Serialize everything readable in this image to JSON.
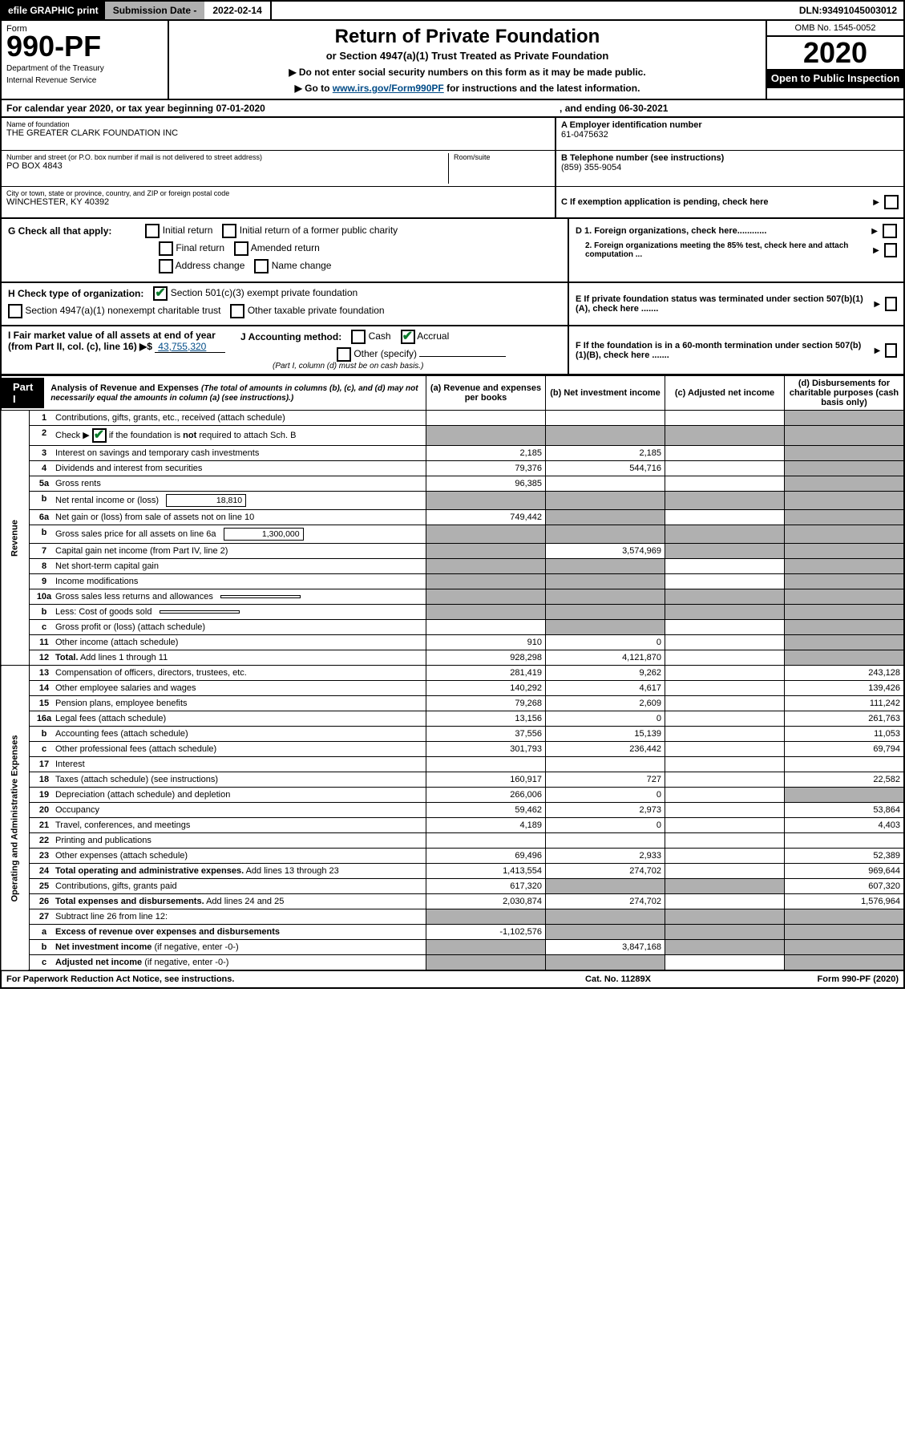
{
  "topbar": {
    "efile": "efile GRAPHIC print",
    "submission_label": "Submission Date - ",
    "submission_date": "2022-02-14",
    "dln_label": "DLN: ",
    "dln": "93491045003012"
  },
  "form": {
    "form_word": "Form",
    "number": "990-PF",
    "dept1": "Department of the Treasury",
    "dept2": "Internal Revenue Service",
    "title": "Return of Private Foundation",
    "subtitle": "or Section 4947(a)(1) Trust Treated as Private Foundation",
    "arrow1_pre": "▶ Do not enter social security numbers on this form as it may be made public.",
    "arrow2_pre": "▶ Go to ",
    "arrow2_link": "www.irs.gov/Form990PF",
    "arrow2_post": " for instructions and the latest information.",
    "omb": "OMB No. 1545-0052",
    "year": "2020",
    "open": "Open to Public Inspection"
  },
  "calendar": {
    "text_pre": "For calendar year 2020, or tax year beginning ",
    "begin": "07-01-2020",
    "text_mid": ", and ending ",
    "end": "06-30-2021"
  },
  "hb": {
    "name_label": "Name of foundation",
    "name": "THE GREATER CLARK FOUNDATION INC",
    "addr_label": "Number and street (or P.O. box number if mail is not delivered to street address)",
    "addr": "PO BOX 4843",
    "room_label": "Room/suite",
    "room": "",
    "city_label": "City or town, state or province, country, and ZIP or foreign postal code",
    "city": "WINCHESTER, KY  40392",
    "ein_label": "A Employer identification number",
    "ein": "61-0475632",
    "phone_label": "B Telephone number (see instructions)",
    "phone": "(859) 355-9054",
    "c_label": "C If exemption application is pending, check here"
  },
  "G": {
    "label": "G Check all that apply:",
    "opts": [
      "Initial return",
      "Initial return of a former public charity",
      "Final return",
      "Amended return",
      "Address change",
      "Name change"
    ],
    "D1": "D 1. Foreign organizations, check here............",
    "D2": "2. Foreign organizations meeting the 85% test, check here and attach computation ...",
    "E": "E  If private foundation status was terminated under section 507(b)(1)(A), check here .......",
    "F": "F  If the foundation is in a 60-month termination under section 507(b)(1)(B), check here ......."
  },
  "H": {
    "label": "H Check type of organization:",
    "opt1": "Section 501(c)(3) exempt private foundation",
    "opt2": "Section 4947(a)(1) nonexempt charitable trust",
    "opt3": "Other taxable private foundation"
  },
  "I": {
    "label": "I Fair market value of all assets at end of year (from Part II, col. (c), line 16) ▶$",
    "value": "43,755,320"
  },
  "J": {
    "label": "J Accounting method:",
    "opt_cash": "Cash",
    "opt_accrual": "Accrual",
    "opt_other": "Other (specify)",
    "note": "(Part I, column (d) must be on cash basis.)"
  },
  "part1": {
    "label": "Part I",
    "title": "Analysis of Revenue and Expenses",
    "sub": " (The total of amounts in columns (b), (c), and (d) may not necessarily equal the amounts in column (a) (see instructions).)",
    "cols": {
      "a": "(a)  Revenue and expenses per books",
      "b": "(b)  Net investment income",
      "c": "(c)  Adjusted net income",
      "d": "(d)  Disbursements for charitable purposes (cash basis only)"
    }
  },
  "sections": {
    "revenue": "Revenue",
    "opex": "Operating and Administrative Expenses"
  },
  "rows": [
    {
      "n": "1",
      "t": "Contributions, gifts, grants, etc., received (attach schedule)",
      "a": "",
      "b": "",
      "c": "",
      "d": "",
      "d_grey": true
    },
    {
      "n": "2",
      "t": "Check ▶ ☑ if the foundation is <b>not</b> required to attach Sch. B",
      "a": "",
      "b": "",
      "c": "",
      "d": "",
      "a_grey": true,
      "b_grey": true,
      "c_grey": true,
      "d_grey": true,
      "has_check": true
    },
    {
      "n": "3",
      "t": "Interest on savings and temporary cash investments",
      "a": "2,185",
      "b": "2,185",
      "c": "",
      "d": "",
      "d_grey": true
    },
    {
      "n": "4",
      "t": "Dividends and interest from securities",
      "a": "79,376",
      "b": "544,716",
      "c": "",
      "d": "",
      "d_grey": true
    },
    {
      "n": "5a",
      "t": "Gross rents",
      "a": "96,385",
      "b": "",
      "c": "",
      "d": "",
      "d_grey": true
    },
    {
      "n": "b",
      "t": "Net rental income or (loss)",
      "mini": "18,810",
      "a": "",
      "b": "",
      "c": "",
      "d": "",
      "a_grey": true,
      "b_grey": true,
      "c_grey": true,
      "d_grey": true
    },
    {
      "n": "6a",
      "t": "Net gain or (loss) from sale of assets not on line 10",
      "a": "749,442",
      "b": "",
      "c": "",
      "d": "",
      "b_grey": true,
      "d_grey": true
    },
    {
      "n": "b",
      "t": "Gross sales price for all assets on line 6a",
      "mini": "1,300,000",
      "a": "",
      "b": "",
      "c": "",
      "d": "",
      "a_grey": true,
      "b_grey": true,
      "c_grey": true,
      "d_grey": true
    },
    {
      "n": "7",
      "t": "Capital gain net income (from Part IV, line 2)",
      "a": "",
      "b": "3,574,969",
      "c": "",
      "d": "",
      "a_grey": true,
      "c_grey": true,
      "d_grey": true
    },
    {
      "n": "8",
      "t": "Net short-term capital gain",
      "a": "",
      "b": "",
      "c": "",
      "d": "",
      "a_grey": true,
      "b_grey": true,
      "d_grey": true
    },
    {
      "n": "9",
      "t": "Income modifications",
      "a": "",
      "b": "",
      "c": "",
      "d": "",
      "a_grey": true,
      "b_grey": true,
      "d_grey": true
    },
    {
      "n": "10a",
      "t": "Gross sales less returns and allowances",
      "mini": "",
      "a": "",
      "b": "",
      "c": "",
      "d": "",
      "a_grey": true,
      "b_grey": true,
      "c_grey": true,
      "d_grey": true
    },
    {
      "n": "b",
      "t": "Less: Cost of goods sold",
      "mini": "",
      "a": "",
      "b": "",
      "c": "",
      "d": "",
      "a_grey": true,
      "b_grey": true,
      "c_grey": true,
      "d_grey": true
    },
    {
      "n": "c",
      "t": "Gross profit or (loss) (attach schedule)",
      "a": "",
      "b": "",
      "c": "",
      "d": "",
      "b_grey": true,
      "d_grey": true
    },
    {
      "n": "11",
      "t": "Other income (attach schedule)",
      "a": "910",
      "b": "0",
      "c": "",
      "d": "",
      "d_grey": true
    },
    {
      "n": "12",
      "t": "<b>Total.</b> Add lines 1 through 11",
      "a": "928,298",
      "b": "4,121,870",
      "c": "",
      "d": "",
      "d_grey": true,
      "bold": true
    }
  ],
  "rows_ex": [
    {
      "n": "13",
      "t": "Compensation of officers, directors, trustees, etc.",
      "a": "281,419",
      "b": "9,262",
      "c": "",
      "d": "243,128"
    },
    {
      "n": "14",
      "t": "Other employee salaries and wages",
      "a": "140,292",
      "b": "4,617",
      "c": "",
      "d": "139,426"
    },
    {
      "n": "15",
      "t": "Pension plans, employee benefits",
      "a": "79,268",
      "b": "2,609",
      "c": "",
      "d": "111,242"
    },
    {
      "n": "16a",
      "t": "Legal fees (attach schedule)",
      "a": "13,156",
      "b": "0",
      "c": "",
      "d": "261,763"
    },
    {
      "n": "b",
      "t": "Accounting fees (attach schedule)",
      "a": "37,556",
      "b": "15,139",
      "c": "",
      "d": "11,053"
    },
    {
      "n": "c",
      "t": "Other professional fees (attach schedule)",
      "a": "301,793",
      "b": "236,442",
      "c": "",
      "d": "69,794"
    },
    {
      "n": "17",
      "t": "Interest",
      "a": "",
      "b": "",
      "c": "",
      "d": ""
    },
    {
      "n": "18",
      "t": "Taxes (attach schedule) (see instructions)",
      "a": "160,917",
      "b": "727",
      "c": "",
      "d": "22,582"
    },
    {
      "n": "19",
      "t": "Depreciation (attach schedule) and depletion",
      "a": "266,006",
      "b": "0",
      "c": "",
      "d": "",
      "d_grey": true
    },
    {
      "n": "20",
      "t": "Occupancy",
      "a": "59,462",
      "b": "2,973",
      "c": "",
      "d": "53,864"
    },
    {
      "n": "21",
      "t": "Travel, conferences, and meetings",
      "a": "4,189",
      "b": "0",
      "c": "",
      "d": "4,403"
    },
    {
      "n": "22",
      "t": "Printing and publications",
      "a": "",
      "b": "",
      "c": "",
      "d": ""
    },
    {
      "n": "23",
      "t": "Other expenses (attach schedule)",
      "a": "69,496",
      "b": "2,933",
      "c": "",
      "d": "52,389"
    },
    {
      "n": "24",
      "t": "<b>Total operating and administrative expenses.</b> Add lines 13 through 23",
      "a": "1,413,554",
      "b": "274,702",
      "c": "",
      "d": "969,644",
      "bold": true
    },
    {
      "n": "25",
      "t": "Contributions, gifts, grants paid",
      "a": "617,320",
      "b": "",
      "c": "",
      "d": "607,320",
      "b_grey": true,
      "c_grey": true
    },
    {
      "n": "26",
      "t": "<b>Total expenses and disbursements.</b> Add lines 24 and 25",
      "a": "2,030,874",
      "b": "274,702",
      "c": "",
      "d": "1,576,964",
      "bold": true
    },
    {
      "n": "27",
      "t": "Subtract line 26 from line 12:",
      "a": "",
      "b": "",
      "c": "",
      "d": "",
      "a_grey": true,
      "b_grey": true,
      "c_grey": true,
      "d_grey": true
    },
    {
      "n": "a",
      "t": "<b>Excess of revenue over expenses and disbursements</b>",
      "a": "-1,102,576",
      "b": "",
      "c": "",
      "d": "",
      "b_grey": true,
      "c_grey": true,
      "d_grey": true
    },
    {
      "n": "b",
      "t": "<b>Net investment income</b> (if negative, enter -0-)",
      "a": "",
      "b": "3,847,168",
      "c": "",
      "d": "",
      "a_grey": true,
      "c_grey": true,
      "d_grey": true
    },
    {
      "n": "c",
      "t": "<b>Adjusted net income</b> (if negative, enter -0-)",
      "a": "",
      "b": "",
      "c": "",
      "d": "",
      "a_grey": true,
      "b_grey": true,
      "d_grey": true
    }
  ],
  "footer": {
    "left": "For Paperwork Reduction Act Notice, see instructions.",
    "cat": "Cat. No. 11289X",
    "form": "Form 990-PF (2020)"
  },
  "rev_span": 16,
  "ex_span": 20
}
